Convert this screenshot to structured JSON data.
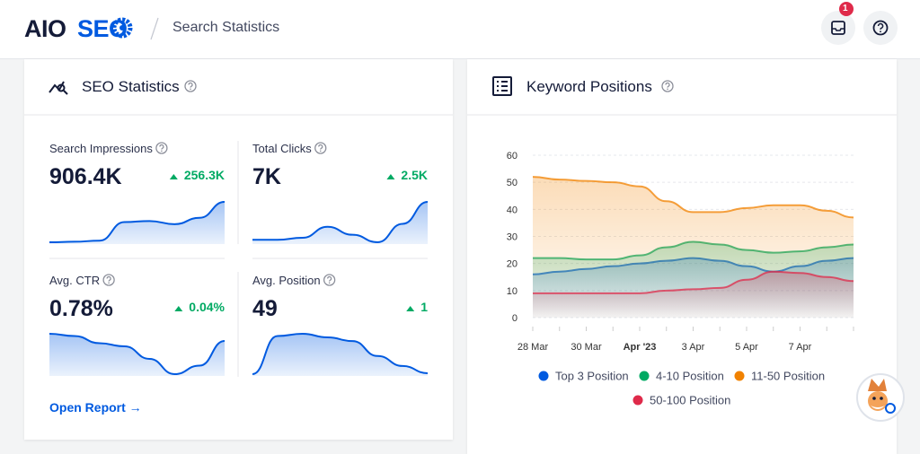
{
  "header": {
    "logo_prefix": "AIO",
    "logo_suffix": "SEO",
    "breadcrumb": "Search Statistics",
    "notification_count": "1"
  },
  "seo_statistics": {
    "title": "SEO Statistics",
    "stats": [
      {
        "label": "Search Impressions",
        "value": "906.4K",
        "change": "256.3K",
        "trend": [
          2,
          2.1,
          2.3,
          5.8,
          6,
          5.4,
          6.6,
          9.6
        ]
      },
      {
        "label": "Total Clicks",
        "value": "7K",
        "change": "2.5K",
        "trend": [
          2,
          2,
          2.4,
          4.6,
          3,
          1.5,
          5.2,
          9.6
        ]
      },
      {
        "label": "Avg. CTR",
        "value": "0.78%",
        "change": "0.04%",
        "trend": [
          9.6,
          9.1,
          7.5,
          6.8,
          4,
          0.6,
          2.5,
          8
        ]
      },
      {
        "label": "Avg. Position",
        "value": "49",
        "change": "1",
        "trend": [
          1,
          9.4,
          9.9,
          9.1,
          8.3,
          5,
          2.8,
          1.2
        ]
      }
    ],
    "link": "Open Report →"
  },
  "keyword_positions": {
    "title": "Keyword Positions"
  },
  "chart_data": {
    "type": "area",
    "categories": [
      "28 Mar",
      null,
      "30 Mar",
      null,
      "Apr '23",
      null,
      "3 Apr",
      null,
      "5 Apr",
      null,
      "7 Apr",
      null,
      null
    ],
    "series": [
      {
        "name": "Top 3 Position",
        "color": "#005ae0",
        "values": [
          16,
          17,
          18,
          19,
          20,
          21,
          22,
          21,
          19,
          17,
          19,
          21,
          22
        ]
      },
      {
        "name": "4-10 Position",
        "color": "#00aa63",
        "values": [
          22,
          22,
          21.5,
          21.5,
          23,
          26,
          28,
          27,
          25,
          24,
          24.5,
          26,
          27
        ]
      },
      {
        "name": "11-50 Position",
        "color": "#f18200",
        "values": [
          52,
          51,
          50.5,
          50,
          48.5,
          43,
          39,
          39,
          40.5,
          41.5,
          41.5,
          39.5,
          37
        ]
      },
      {
        "name": "50-100 Position",
        "color": "#df2a4a",
        "values": [
          9,
          9,
          9,
          9,
          9,
          10,
          10.5,
          11,
          14,
          17,
          16.5,
          15,
          13.5
        ]
      }
    ],
    "ylim": [
      0,
      60
    ],
    "yticks": [
      0,
      10,
      20,
      30,
      40,
      50,
      60
    ],
    "grid": true,
    "legend": "bottom"
  }
}
